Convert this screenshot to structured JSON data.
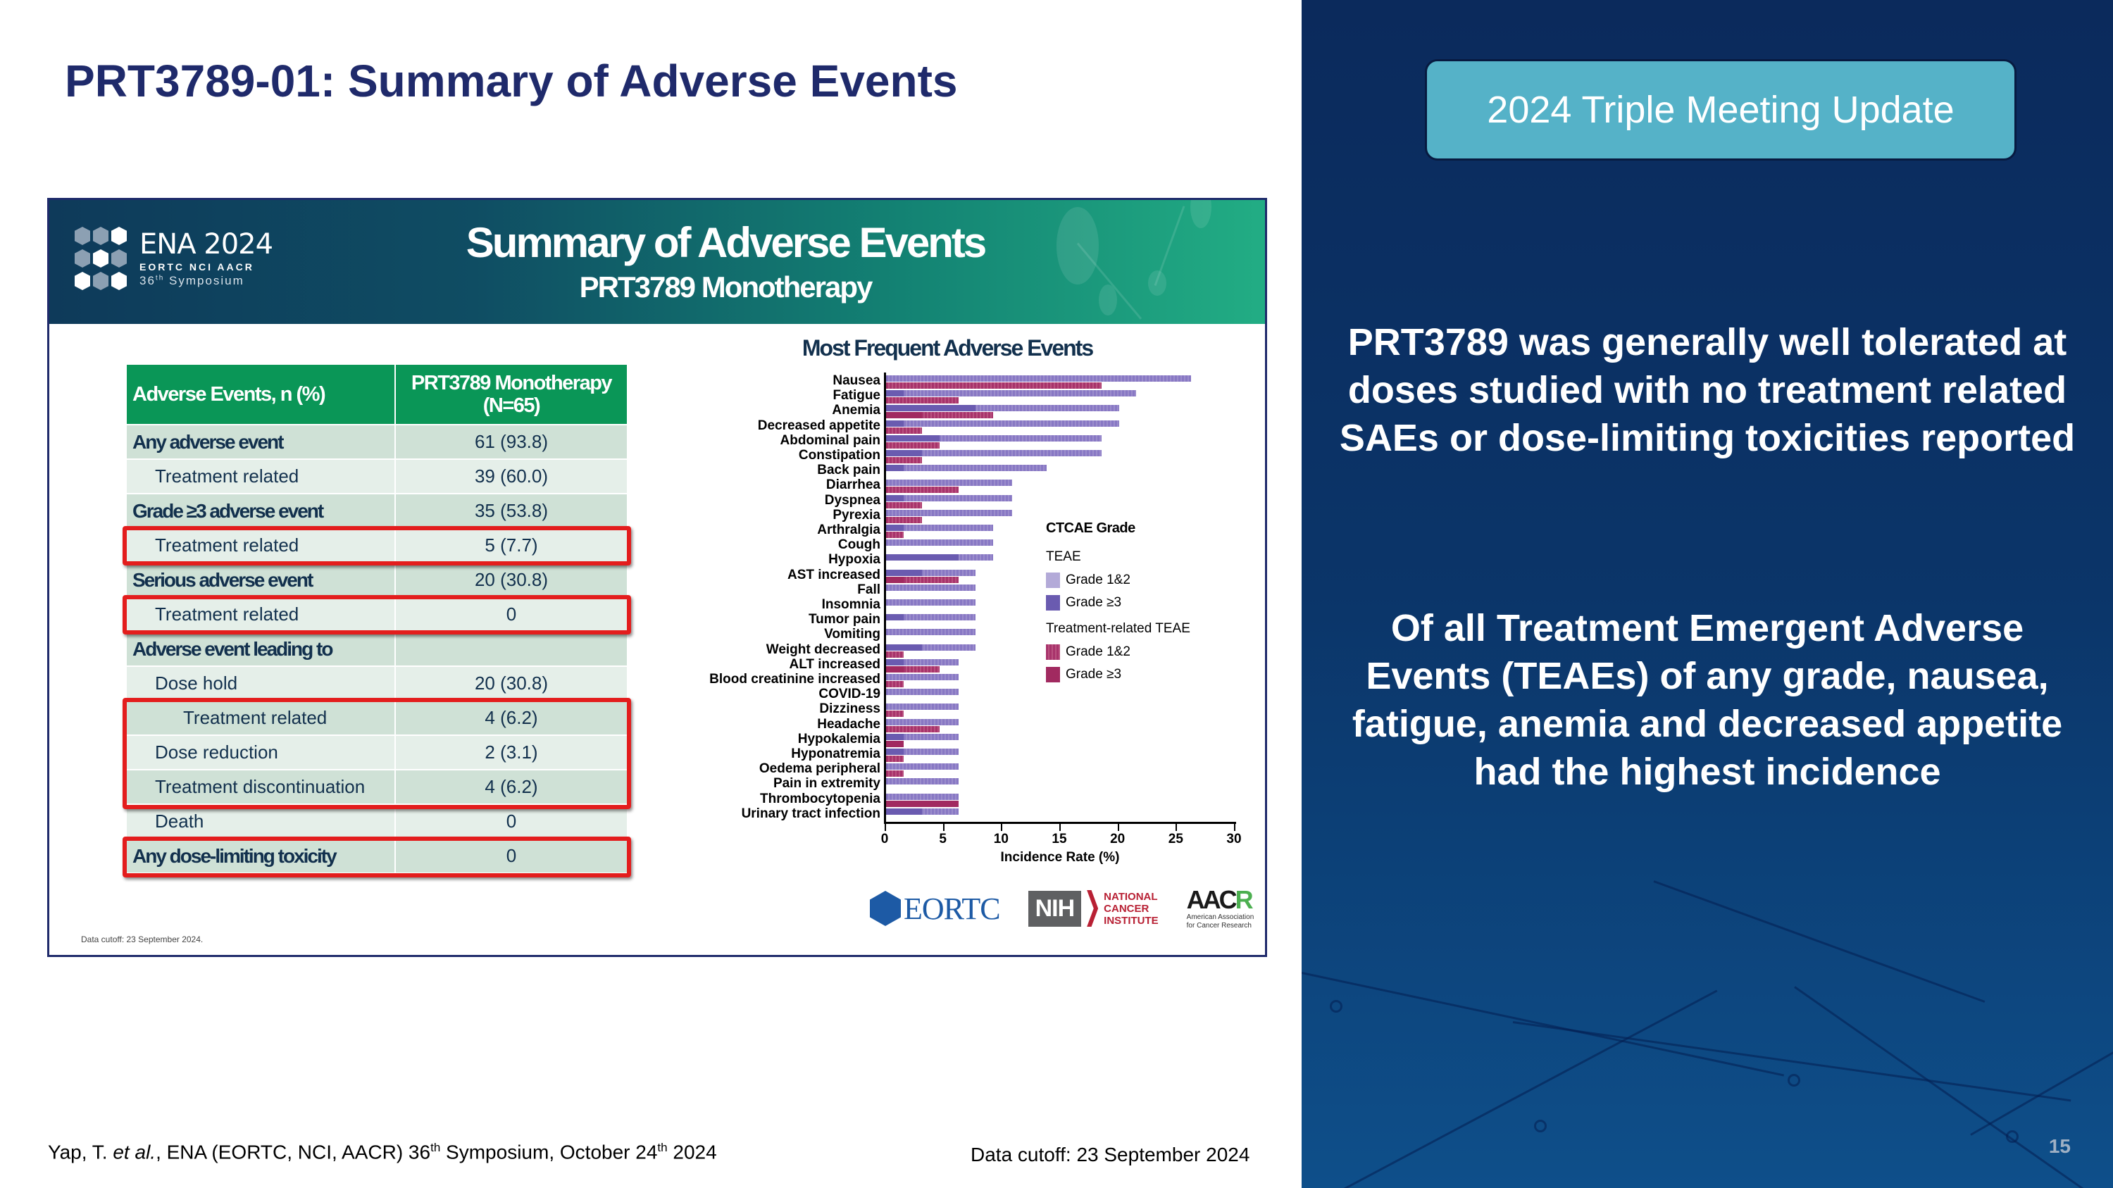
{
  "slide": {
    "title": "PRT3789-01: Summary of Adverse Events",
    "page_number": "15",
    "citation": {
      "author": "Yap, T. ",
      "etal": "et al.",
      "pre": ", ENA (EORTC, NCI, AACR) 36",
      "sup1": "th",
      "mid": " Symposium, October 24",
      "sup2": "th",
      "post": " 2024"
    },
    "data_cutoff": "Data cutoff: 23 September 2024"
  },
  "card": {
    "logo": {
      "name": "ENA 2024",
      "orgs": "EORTC  NCI  AACR",
      "symposium_num": "36",
      "symposium_sup": "th",
      "symposium_word": " Symposium"
    },
    "title": "Summary of Adverse Events",
    "subtitle": "PRT3789 Monotherapy",
    "footnote": "Data cutoff: 23 September 2024.",
    "table": {
      "headers": [
        "Adverse Events, n (%)",
        "PRT3789 Monotherapy",
        "(N=65)"
      ],
      "rows": [
        {
          "label": "Any adverse event",
          "value": "61 (93.8)"
        },
        {
          "label": "Treatment related",
          "value": "39 (60.0)"
        },
        {
          "label": "Grade ≥3 adverse event",
          "value": "35 (53.8)"
        },
        {
          "label": "Treatment related",
          "value": "5 (7.7)"
        },
        {
          "label": "Serious adverse event",
          "value": "20 (30.8)"
        },
        {
          "label": "Treatment related",
          "value": "0"
        },
        {
          "label": "Adverse event leading to",
          "value": ""
        },
        {
          "label": "Dose hold",
          "value": "20 (30.8)"
        },
        {
          "label": "Treatment related",
          "value": "4 (6.2)"
        },
        {
          "label": "Dose reduction",
          "value": "2 (3.1)"
        },
        {
          "label": "Treatment discontinuation",
          "value": "4 (6.2)"
        },
        {
          "label": "Death",
          "value": "0"
        },
        {
          "label": "Any dose-limiting toxicity",
          "value": "0"
        }
      ]
    },
    "logos": {
      "eortc": "EORTC",
      "nih": "NIH",
      "nci": [
        "NATIONAL",
        "CANCER",
        "INSTITUTE"
      ],
      "aacr_a": "AAC",
      "aacr_b": "R",
      "aacr_sub": [
        "American Association",
        "for Cancer Research"
      ]
    }
  },
  "chart_data": {
    "type": "bar",
    "orientation": "horizontal",
    "title": "Most Frequent Adverse Events",
    "xlabel": "Incidence Rate (%)",
    "ylabel": "",
    "xlim": [
      0,
      30
    ],
    "xticks": [
      "0",
      "5",
      "10",
      "15",
      "20",
      "25",
      "30"
    ],
    "grid": false,
    "legend_position": "right",
    "legend": {
      "title": "CTCAE Grade",
      "groups": [
        {
          "name": "TEAE",
          "items": [
            "Grade 1&2",
            "Grade ≥3"
          ]
        },
        {
          "name": "Treatment-related TEAE",
          "items": [
            "Grade 1&2",
            "Grade ≥3"
          ]
        }
      ]
    },
    "colors": {
      "teae_g12": "#9b8dcc",
      "teae_g3": "#6a5bb0",
      "tr_g12": "#b9527f",
      "tr_g3": "#a12a60"
    },
    "categories": [
      "Nausea",
      "Fatigue",
      "Anemia",
      "Decreased appetite",
      "Abdominal pain",
      "Constipation",
      "Back pain",
      "Diarrhea",
      "Dyspnea",
      "Pyrexia",
      "Arthralgia",
      "Cough",
      "Hypoxia",
      "AST increased",
      "Fall",
      "Insomnia",
      "Tumor pain",
      "Vomiting",
      "Weight decreased",
      "ALT increased",
      "Blood creatinine increased",
      "COVID-19",
      "Dizziness",
      "Headache",
      "Hypokalemia",
      "Hyponatremia",
      "Oedema peripheral",
      "Pain in extremity",
      "Thrombocytopenia",
      "Urinary tract infection"
    ],
    "series": [
      {
        "name": "TEAE (any grade)",
        "values": [
          26.2,
          21.5,
          20.0,
          20.0,
          18.5,
          18.5,
          13.8,
          10.8,
          10.8,
          10.8,
          9.2,
          9.2,
          9.2,
          7.7,
          7.7,
          7.7,
          7.7,
          7.7,
          7.7,
          6.2,
          6.2,
          6.2,
          6.2,
          6.2,
          6.2,
          6.2,
          6.2,
          6.2,
          6.2,
          6.2
        ]
      },
      {
        "name": "TEAE Grade ≥3",
        "values": [
          0,
          1.5,
          7.7,
          1.5,
          4.6,
          3.1,
          1.5,
          0,
          1.5,
          0,
          1.5,
          0,
          6.2,
          3.1,
          0,
          0,
          1.5,
          0,
          3.1,
          1.5,
          0,
          0,
          0,
          0,
          1.5,
          1.5,
          0,
          0,
          0,
          3.1
        ]
      },
      {
        "name": "Treatment-related TEAE (any grade)",
        "values": [
          18.5,
          6.2,
          9.2,
          3.1,
          4.6,
          3.1,
          0,
          6.2,
          3.1,
          3.1,
          1.5,
          0,
          0,
          6.2,
          0,
          0,
          0,
          0,
          1.5,
          4.6,
          1.5,
          0,
          1.5,
          4.6,
          1.5,
          1.5,
          1.5,
          0,
          6.2,
          0
        ]
      },
      {
        "name": "Treatment-related TEAE Grade ≥3",
        "values": [
          0,
          0,
          3.1,
          0,
          0,
          0,
          0,
          0,
          0,
          0,
          0,
          0,
          0,
          1.5,
          0,
          0,
          0,
          0,
          0,
          1.5,
          0,
          0,
          0,
          0,
          1.5,
          0,
          0,
          0,
          6.2,
          0
        ]
      }
    ]
  },
  "right_panel": {
    "badge": "2024 Triple Meeting Update",
    "paragraph1": "PRT3789 was generally well tolerated at doses studied with no treatment related SAEs or dose-limiting toxicities reported",
    "paragraph2": "Of all Treatment Emergent Adverse Events (TEAEs) of any grade, nausea, fatigue, anemia and decreased appetite had the highest incidence",
    "accent_color": "#55b2c8"
  }
}
